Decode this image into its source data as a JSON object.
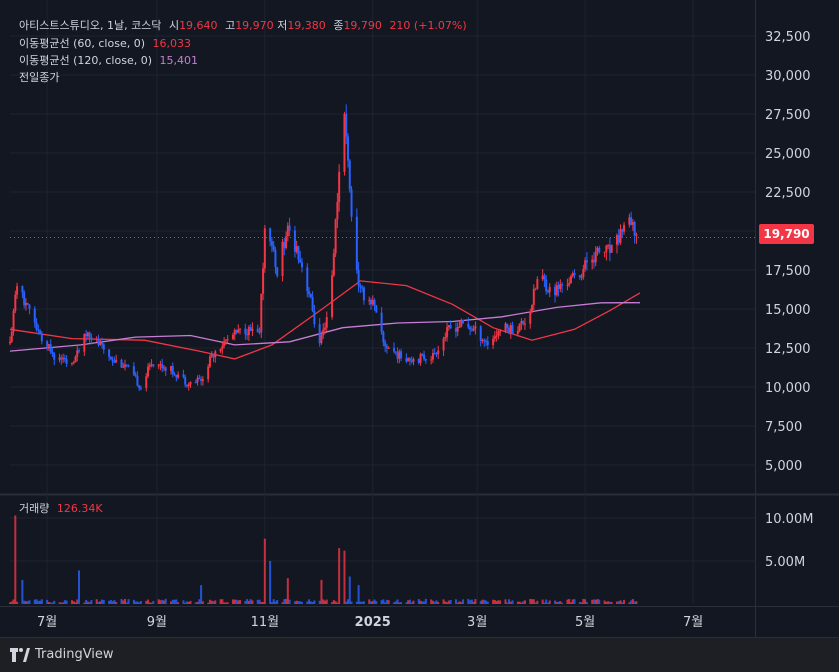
{
  "header": {
    "symbol": "아티스트스튜디오, 1날, 코스닥",
    "open_label": "시",
    "open_value": "19,640",
    "high_label": "고",
    "high_value": "19,970",
    "low_label": "저",
    "low_value": "19,380",
    "close_label": "종",
    "close_value": "19,790",
    "change": "210 (+1.07%)"
  },
  "indicators": [
    {
      "label": "이동평균선 (60, close, 0)",
      "value": "16,033",
      "color": "#f23645"
    },
    {
      "label": "이동평균선 (120, close, 0)",
      "value": "15,401",
      "color": "#c77dd6"
    },
    {
      "label": "전일종가",
      "value": ""
    }
  ],
  "volume_pane": {
    "label": "거래량",
    "value": "126.34K"
  },
  "last_price_tag": "19,790",
  "branding": {
    "name": "TradingView"
  },
  "colors": {
    "up": "#f23645",
    "down": "#2962ff",
    "ma60": "#f23645",
    "ma120": "#c77dd6",
    "background": "#131722"
  },
  "chart_data": {
    "type": "candlestick",
    "price_axis": {
      "ticks": [
        5000,
        7500,
        10000,
        12500,
        15000,
        17500,
        20000,
        22500,
        25000,
        27500,
        30000,
        32500
      ],
      "tick_labels": [
        "5,000",
        "7,500",
        "10,000",
        "12,500",
        "15,000",
        "17,500",
        "20,000",
        "22,500",
        "25,000",
        "27,500",
        "30,000",
        "32,500"
      ]
    },
    "volume_axis": {
      "ticks": [
        5000000,
        10000000
      ],
      "tick_labels": [
        "5.00M",
        "10.00M"
      ]
    },
    "time_axis": {
      "labels": [
        "7월",
        "9월",
        "11월",
        "2025",
        "3월",
        "5월",
        "7월"
      ],
      "label_dates": [
        "2024-07-01",
        "2024-09-01",
        "2024-11-01",
        "2025-01-01",
        "2025-03-01",
        "2025-05-01",
        "2025-07-01"
      ],
      "range": [
        "2024-06-10",
        "2025-08-05"
      ]
    },
    "grid": true,
    "previous_close": 19580,
    "last_close": 19790,
    "close_path": [
      [
        "2024-06-10",
        12800
      ],
      [
        "2024-06-14",
        16500
      ],
      [
        "2024-06-18",
        15600
      ],
      [
        "2024-06-25",
        13600
      ],
      [
        "2024-07-05",
        12000
      ],
      [
        "2024-07-15",
        11300
      ],
      [
        "2024-07-24",
        13600
      ],
      [
        "2024-08-01",
        12500
      ],
      [
        "2024-08-07",
        11800
      ],
      [
        "2024-08-14",
        11400
      ],
      [
        "2024-08-23",
        10000
      ],
      [
        "2024-08-29",
        11600
      ],
      [
        "2024-09-06",
        11300
      ],
      [
        "2024-09-13",
        10800
      ],
      [
        "2024-09-19",
        10200
      ],
      [
        "2024-09-26",
        10500
      ],
      [
        "2024-10-04",
        12400
      ],
      [
        "2024-10-14",
        13300
      ],
      [
        "2024-10-21",
        13700
      ],
      [
        "2024-10-29",
        13300
      ],
      [
        "2024-11-01",
        20200
      ],
      [
        "2024-11-05",
        18800
      ],
      [
        "2024-11-08",
        17500
      ],
      [
        "2024-11-14",
        20200
      ],
      [
        "2024-11-20",
        18600
      ],
      [
        "2024-11-26",
        16000
      ],
      [
        "2024-12-02",
        12600
      ],
      [
        "2024-12-08",
        15500
      ],
      [
        "2024-12-13",
        23800
      ],
      [
        "2024-12-16",
        27300
      ],
      [
        "2024-12-19",
        22500
      ],
      [
        "2024-12-24",
        16200
      ],
      [
        "2025-01-01",
        15400
      ],
      [
        "2025-01-07",
        12800
      ],
      [
        "2025-01-16",
        12000
      ],
      [
        "2025-01-25",
        11800
      ],
      [
        "2025-02-04",
        12000
      ],
      [
        "2025-02-13",
        13700
      ],
      [
        "2025-02-20",
        14000
      ],
      [
        "2025-02-27",
        13700
      ],
      [
        "2025-03-07",
        12800
      ],
      [
        "2025-03-15",
        13800
      ],
      [
        "2025-03-23",
        13700
      ],
      [
        "2025-03-30",
        14500
      ],
      [
        "2025-04-05",
        17300
      ],
      [
        "2025-04-12",
        16000
      ],
      [
        "2025-04-20",
        16700
      ],
      [
        "2025-04-28",
        17200
      ],
      [
        "2025-05-03",
        18200
      ],
      [
        "2025-05-10",
        18700
      ],
      [
        "2025-05-17",
        18700
      ],
      [
        "2025-05-24",
        20700
      ],
      [
        "2025-05-30",
        19790
      ]
    ],
    "series": [
      {
        "name": "이동평균선 (60, close, 0)",
        "points": [
          [
            "2024-06-10",
            13700
          ],
          [
            "2024-07-15",
            13100
          ],
          [
            "2024-08-25",
            13000
          ],
          [
            "2024-09-25",
            12300
          ],
          [
            "2024-10-15",
            11800
          ],
          [
            "2024-11-05",
            12700
          ],
          [
            "2024-12-01",
            14800
          ],
          [
            "2024-12-25",
            16800
          ],
          [
            "2025-01-20",
            16500
          ],
          [
            "2025-02-15",
            15300
          ],
          [
            "2025-03-10",
            13800
          ],
          [
            "2025-04-01",
            13000
          ],
          [
            "2025-04-25",
            13700
          ],
          [
            "2025-05-15",
            14900
          ],
          [
            "2025-06-01",
            16033
          ]
        ]
      },
      {
        "name": "이동평균선 (120, close, 0)",
        "points": [
          [
            "2024-06-10",
            12300
          ],
          [
            "2024-07-20",
            12700
          ],
          [
            "2024-08-20",
            13200
          ],
          [
            "2024-09-20",
            13300
          ],
          [
            "2024-10-15",
            12700
          ],
          [
            "2024-11-15",
            12900
          ],
          [
            "2024-12-15",
            13800
          ],
          [
            "2025-01-15",
            14100
          ],
          [
            "2025-02-15",
            14200
          ],
          [
            "2025-03-15",
            14500
          ],
          [
            "2025-04-15",
            15100
          ],
          [
            "2025-05-10",
            15400
          ],
          [
            "2025-06-01",
            15401
          ]
        ]
      }
    ],
    "volume_spikes": [
      [
        "2024-06-13",
        10300000
      ],
      [
        "2024-06-17",
        2800000
      ],
      [
        "2024-07-19",
        3900000
      ],
      [
        "2024-09-26",
        2200000
      ],
      [
        "2024-11-01",
        7600000
      ],
      [
        "2024-11-04",
        5000000
      ],
      [
        "2024-11-14",
        3000000
      ],
      [
        "2024-12-03",
        2800000
      ],
      [
        "2024-12-13",
        6500000
      ],
      [
        "2024-12-16",
        6200000
      ],
      [
        "2024-12-19",
        3200000
      ],
      [
        "2024-12-24",
        2200000
      ],
      [
        "2025-04-05",
        700000
      ],
      [
        "2025-05-24",
        600000
      ]
    ]
  }
}
